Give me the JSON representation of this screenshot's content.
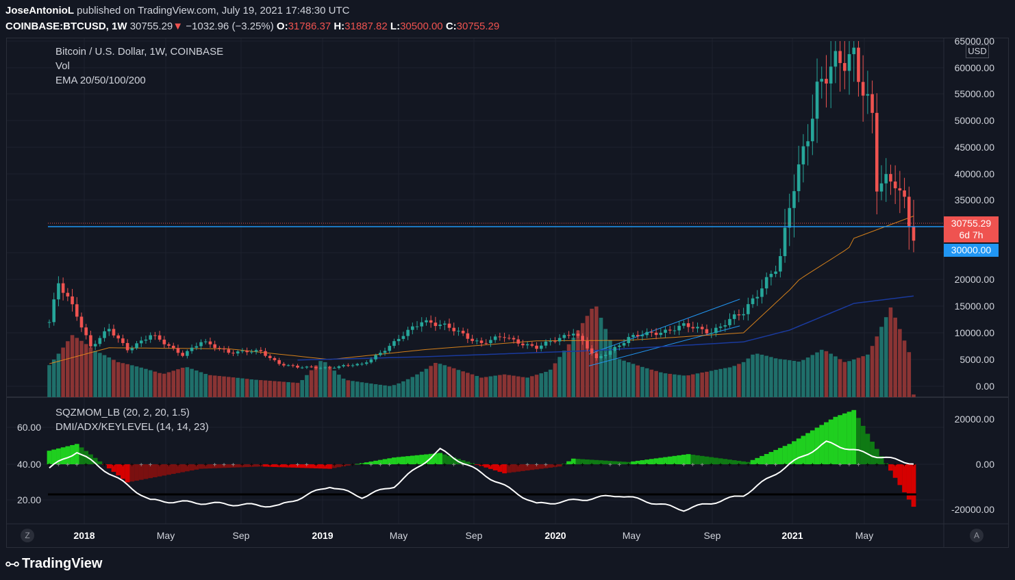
{
  "header": {
    "author": "JoseAntonioL",
    "published": "published on TradingView.com, July 19, 2021 17:48:30 UTC",
    "symbol": "COINBASE:BTCUSD, 1W",
    "last": "30755.29",
    "change_arrow": "▼",
    "change": "−1032.96 (−3.25%)",
    "o_label": "O:",
    "o": "31786.37",
    "h_label": "H:",
    "h": "31887.82",
    "l_label": "L:",
    "l": "30500.00",
    "c_label": "C:",
    "c": "30755.29"
  },
  "main_pane": {
    "title": "Bitcoin / U.S. Dollar, 1W, COINBASE",
    "vol_label": "Vol",
    "ema_label": "EMA 20/50/100/200",
    "currency": "USD",
    "price_axis": [
      "65000.00",
      "60000.00",
      "55000.00",
      "50000.00",
      "45000.00",
      "40000.00",
      "35000.00",
      "30000.00",
      "20000.00",
      "15000.00",
      "10000.00",
      "5000.00",
      "0.00"
    ],
    "last_price_tag": "30755.29",
    "countdown_tag": "6d 7h",
    "level_tag": "30000.00"
  },
  "lower_pane": {
    "sqz_label": "SQZMOM_LB (20, 2, 20, 1.5)",
    "dmi_label": "DMI/ADX/KEYLEVEL (14, 14, 23)",
    "left_axis": [
      "60.00",
      "40.00",
      "20.00"
    ],
    "right_axis": [
      "20000.00",
      "0.00",
      "-20000.00"
    ]
  },
  "time_axis": [
    {
      "t": "2018",
      "bold": true
    },
    {
      "t": "May",
      "bold": false
    },
    {
      "t": "Sep",
      "bold": false
    },
    {
      "t": "2019",
      "bold": true
    },
    {
      "t": "May",
      "bold": false
    },
    {
      "t": "Sep",
      "bold": false
    },
    {
      "t": "2020",
      "bold": true
    },
    {
      "t": "May",
      "bold": false
    },
    {
      "t": "Sep",
      "bold": false
    },
    {
      "t": "2021",
      "bold": true
    },
    {
      "t": "May",
      "bold": false
    }
  ],
  "corner_buttons": {
    "left": "Z",
    "right": "A"
  },
  "branding": "TradingView",
  "colors": {
    "bg": "#131722",
    "up": "#26a69a",
    "down": "#ef5350",
    "level": "#2196f3",
    "ema_orange": "#f7931a",
    "ema_blue": "#1a237e",
    "sqz_green": "#00c853",
    "sqz_red": "#d50000"
  },
  "chart_data": {
    "type": "candlestick",
    "title": "Bitcoin / U.S. Dollar, 1W, COINBASE",
    "price_ylim": [
      0,
      65000
    ],
    "key_level": 30000,
    "last_close": 30755.29,
    "price_path": [
      [
        "2017-12-04",
        12000
      ],
      [
        "2017-12-18",
        19000
      ],
      [
        "2018-01-15",
        13500
      ],
      [
        "2018-02-05",
        7500
      ],
      [
        "2018-03-05",
        10500
      ],
      [
        "2018-04-02",
        7000
      ],
      [
        "2018-05-07",
        9500
      ],
      [
        "2018-06-25",
        6000
      ],
      [
        "2018-07-23",
        8200
      ],
      [
        "2018-09-03",
        6500
      ],
      [
        "2018-10-22",
        6400
      ],
      [
        "2018-11-19",
        4300
      ],
      [
        "2018-12-17",
        3500
      ],
      [
        "2019-02-04",
        3500
      ],
      [
        "2019-03-25",
        4100
      ],
      [
        "2019-05-13",
        8000
      ],
      [
        "2019-06-24",
        12500
      ],
      [
        "2019-08-19",
        10200
      ],
      [
        "2019-09-23",
        8000
      ],
      [
        "2019-10-28",
        9300
      ],
      [
        "2019-12-16",
        7100
      ],
      [
        "2020-02-10",
        10300
      ],
      [
        "2020-03-16",
        5000
      ],
      [
        "2020-05-04",
        9000
      ],
      [
        "2020-07-27",
        11200
      ],
      [
        "2020-09-07",
        10300
      ],
      [
        "2020-10-26",
        13700
      ],
      [
        "2020-12-14",
        23000
      ],
      [
        "2021-01-04",
        34000
      ],
      [
        "2021-02-15",
        56000
      ],
      [
        "2021-04-12",
        63500
      ],
      [
        "2021-05-10",
        50000
      ],
      [
        "2021-05-17",
        37000
      ],
      [
        "2021-06-14",
        39000
      ],
      [
        "2021-07-12",
        31780
      ],
      [
        "2021-07-19",
        30755
      ]
    ],
    "ema_orange_path": [
      [
        "2017-12-04",
        4200
      ],
      [
        "2018-03-05",
        7200
      ],
      [
        "2018-09-03",
        7000
      ],
      [
        "2019-02-04",
        5000
      ],
      [
        "2019-06-24",
        6800
      ],
      [
        "2019-12-16",
        8500
      ],
      [
        "2020-05-04",
        8600
      ],
      [
        "2020-10-26",
        10000
      ],
      [
        "2021-01-04",
        18000
      ],
      [
        "2021-04-12",
        31000
      ],
      [
        "2021-07-19",
        33500
      ]
    ],
    "ema_blue_path": [
      [
        "2018-12-17",
        4900
      ],
      [
        "2019-06-24",
        5500
      ],
      [
        "2020-03-16",
        6700
      ],
      [
        "2020-10-26",
        8300
      ],
      [
        "2021-01-04",
        10500
      ],
      [
        "2021-04-12",
        15500
      ],
      [
        "2021-07-19",
        17000
      ]
    ],
    "volume_relative": [
      0.48,
      0.82,
      0.55,
      0.38,
      0.3,
      0.22,
      0.28,
      0.2,
      0.18,
      0.16,
      0.15,
      0.14,
      0.4,
      0.2,
      0.18,
      0.16,
      0.28,
      0.42,
      0.3,
      0.2,
      0.22,
      0.18,
      0.24,
      0.52,
      0.85,
      0.36,
      0.3,
      0.25,
      0.24,
      0.32,
      0.42,
      0.62,
      0.48,
      0.4,
      0.5,
      0.34,
      0.4,
      0.82,
      0.3
    ],
    "sqz_momentum_path": [
      [
        "2017-12-04",
        6000
      ],
      [
        "2018-01-15",
        9000
      ],
      [
        "2018-04-02",
        -8000
      ],
      [
        "2018-07-23",
        -2000
      ],
      [
        "2018-10-22",
        -1000
      ],
      [
        "2019-02-04",
        -2000
      ],
      [
        "2019-05-13",
        3000
      ],
      [
        "2019-07-22",
        5000
      ],
      [
        "2019-10-28",
        -4000
      ],
      [
        "2020-01-20",
        -1000
      ],
      [
        "2020-02-10",
        2500
      ],
      [
        "2020-05-04",
        1000
      ],
      [
        "2020-08-03",
        4500
      ],
      [
        "2020-11-02",
        1000
      ],
      [
        "2021-01-04",
        9000
      ],
      [
        "2021-03-15",
        21000
      ],
      [
        "2021-04-12",
        24000
      ],
      [
        "2021-05-10",
        10000
      ],
      [
        "2021-07-19",
        -22000
      ]
    ],
    "adx_path": [
      [
        "2017-12-04",
        38
      ],
      [
        "2018-01-15",
        47
      ],
      [
        "2018-05-07",
        20
      ],
      [
        "2018-09-03",
        18
      ],
      [
        "2018-11-19",
        17
      ],
      [
        "2019-02-04",
        28
      ],
      [
        "2019-03-25",
        22
      ],
      [
        "2019-05-13",
        28
      ],
      [
        "2019-07-22",
        48
      ],
      [
        "2019-10-28",
        28
      ],
      [
        "2019-12-16",
        18
      ],
      [
        "2020-02-10",
        20
      ],
      [
        "2020-04-20",
        23
      ],
      [
        "2020-07-27",
        15
      ],
      [
        "2020-10-26",
        23
      ],
      [
        "2021-01-04",
        40
      ],
      [
        "2021-03-01",
        52
      ],
      [
        "2021-05-10",
        45
      ],
      [
        "2021-07-19",
        40
      ]
    ],
    "key_level_adx": 23,
    "x_ticks": [
      "2018",
      "May",
      "Sep",
      "2019",
      "May",
      "Sep",
      "2020",
      "May",
      "Sep",
      "2021",
      "May"
    ]
  }
}
